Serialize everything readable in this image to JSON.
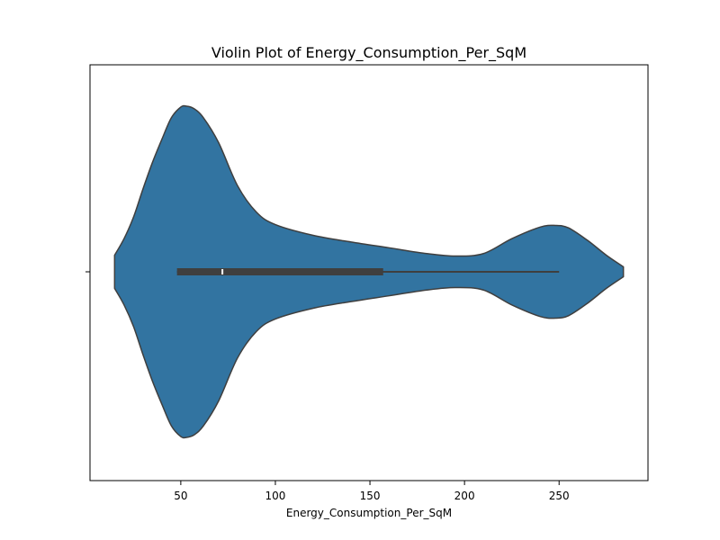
{
  "chart_data": {
    "type": "violin",
    "title": "Violin Plot of Energy_Consumption_Per_SqM",
    "xlabel": "Energy_Consumption_Per_SqM",
    "ylabel": "",
    "xlim": [
      2,
      297
    ],
    "xticks": [
      50,
      100,
      150,
      200,
      250
    ],
    "fill_color": "#3274a1",
    "edge_color": "#3f3f3f",
    "density_profile": [
      {
        "x": 15,
        "h": 0.1
      },
      {
        "x": 20,
        "h": 0.2
      },
      {
        "x": 25,
        "h": 0.33
      },
      {
        "x": 30,
        "h": 0.5
      },
      {
        "x": 35,
        "h": 0.66
      },
      {
        "x": 40,
        "h": 0.8
      },
      {
        "x": 45,
        "h": 0.93
      },
      {
        "x": 50,
        "h": 0.995
      },
      {
        "x": 53,
        "h": 1.0
      },
      {
        "x": 57,
        "h": 0.985
      },
      {
        "x": 62,
        "h": 0.93
      },
      {
        "x": 70,
        "h": 0.78
      },
      {
        "x": 80,
        "h": 0.52
      },
      {
        "x": 90,
        "h": 0.36
      },
      {
        "x": 100,
        "h": 0.285
      },
      {
        "x": 120,
        "h": 0.22
      },
      {
        "x": 140,
        "h": 0.18
      },
      {
        "x": 160,
        "h": 0.145
      },
      {
        "x": 180,
        "h": 0.11
      },
      {
        "x": 195,
        "h": 0.095
      },
      {
        "x": 210,
        "h": 0.11
      },
      {
        "x": 225,
        "h": 0.2
      },
      {
        "x": 240,
        "h": 0.27
      },
      {
        "x": 248,
        "h": 0.28
      },
      {
        "x": 255,
        "h": 0.265
      },
      {
        "x": 265,
        "h": 0.19
      },
      {
        "x": 275,
        "h": 0.1
      },
      {
        "x": 284,
        "h": 0.03
      }
    ],
    "box": {
      "q1": 48,
      "median": 72,
      "q3": 157,
      "whisker_low": 48,
      "whisker_high": 250
    }
  }
}
